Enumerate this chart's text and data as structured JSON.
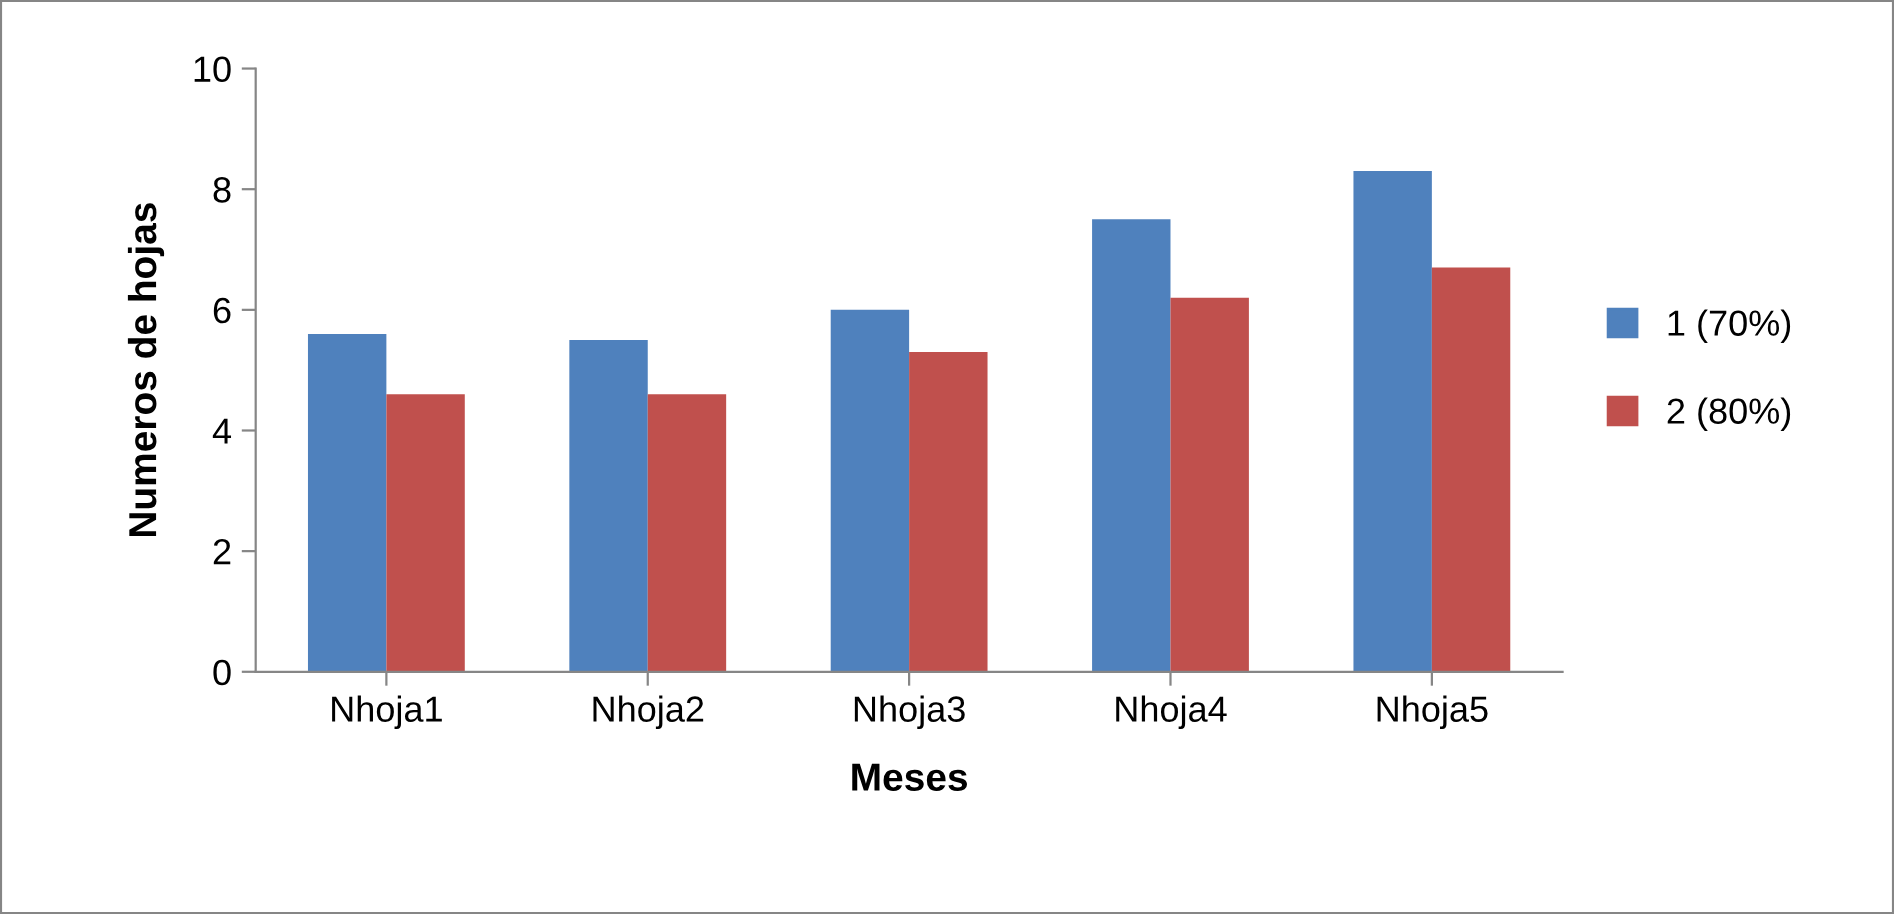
{
  "chart_data": {
    "type": "bar",
    "xlabel": "Meses",
    "ylabel": "Numeros de hojas",
    "categories": [
      "Nhoja1",
      "Nhoja2",
      "Nhoja3",
      "Nhoja4",
      "Nhoja5"
    ],
    "series": [
      {
        "name": "1 (70%)",
        "color": "#4f81bd",
        "values": [
          5.6,
          5.5,
          6.0,
          7.5,
          8.3
        ]
      },
      {
        "name": "2 (80%)",
        "color": "#c0504d",
        "values": [
          4.6,
          4.6,
          5.3,
          6.2,
          6.7
        ]
      }
    ],
    "ylim": [
      0,
      10
    ],
    "yticks": [
      0,
      2,
      4,
      6,
      8,
      10
    ],
    "grid": false,
    "legend": "right"
  }
}
